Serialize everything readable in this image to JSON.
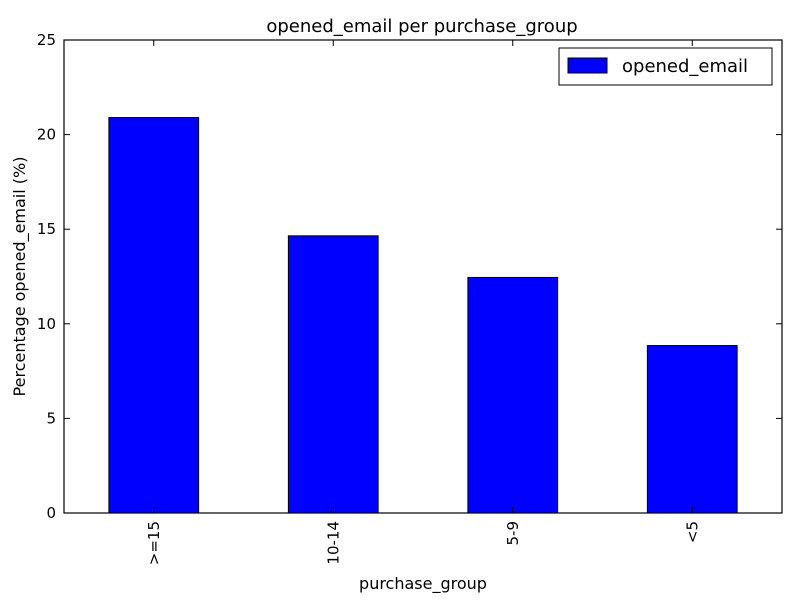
{
  "chart_data": {
    "type": "bar",
    "title": "opened_email per purchase_group",
    "xlabel": "purchase_group",
    "ylabel": "Percentage opened_email (%)",
    "categories": [
      ">=15",
      "10-14",
      "5-9",
      "<5"
    ],
    "series": [
      {
        "name": "opened_email",
        "values": [
          20.9,
          14.65,
          12.45,
          8.85
        ]
      }
    ],
    "ylim": [
      0,
      25
    ],
    "yticks": [
      0,
      5,
      10,
      15,
      20,
      25
    ],
    "grid": false,
    "legend_position": "top-right",
    "bar_color": "#0000ff",
    "edge_color": "#000000"
  }
}
